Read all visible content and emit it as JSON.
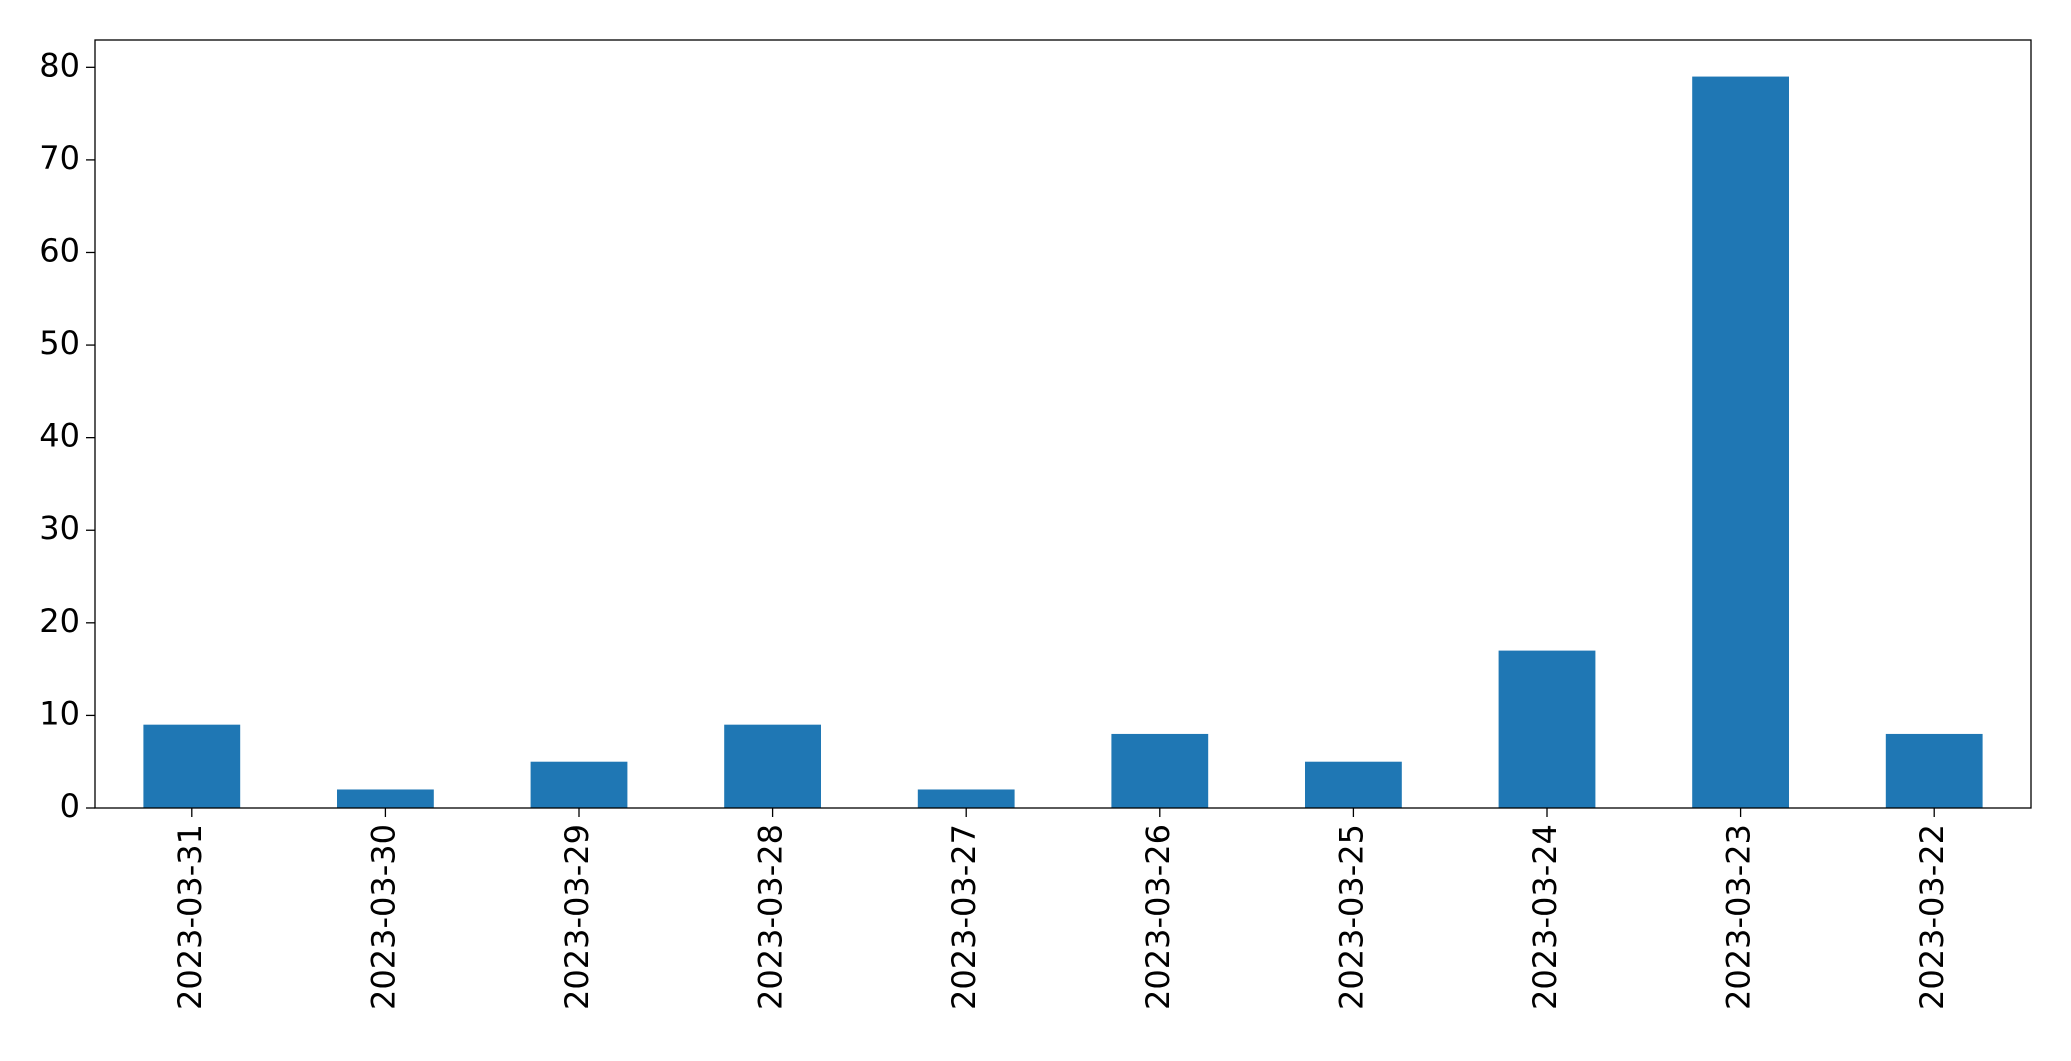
{
  "chart_data": {
    "type": "bar",
    "categories": [
      "2023-03-31",
      "2023-03-30",
      "2023-03-29",
      "2023-03-28",
      "2023-03-27",
      "2023-03-26",
      "2023-03-25",
      "2023-03-24",
      "2023-03-23",
      "2023-03-22"
    ],
    "values": [
      9,
      2,
      5,
      9,
      2,
      8,
      5,
      17,
      79,
      8
    ],
    "color": "#1f77b4",
    "ylim": [
      0,
      82.95
    ],
    "yticks": [
      0,
      10,
      20,
      30,
      40,
      50,
      60,
      70,
      80
    ],
    "grid": false
  }
}
